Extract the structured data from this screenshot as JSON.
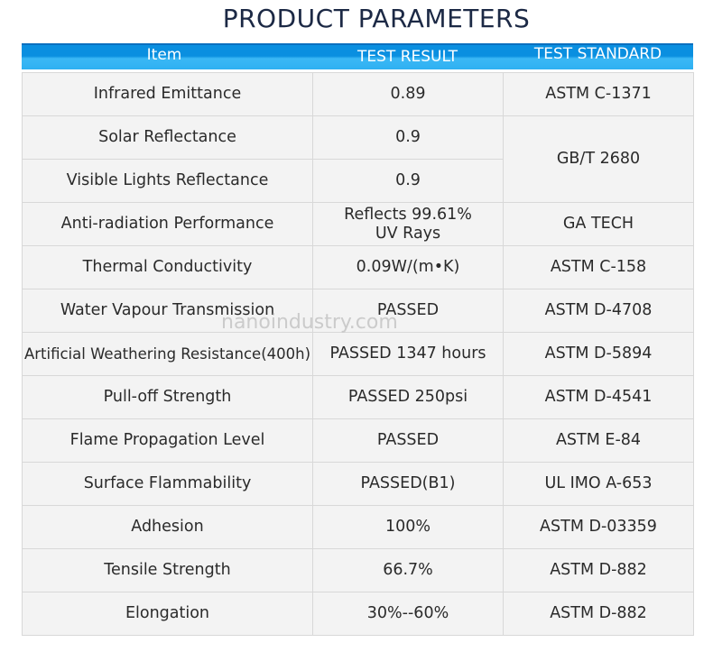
{
  "header": {
    "title": "PRODUCT PARAMETERS"
  },
  "table": {
    "columns": [
      "Item",
      "TEST RESULT",
      "TEST STANDARD"
    ],
    "rows": [
      {
        "item": "Infrared Emittance",
        "result": "0.89",
        "standard": "ASTM C-1371"
      },
      {
        "item": "Solar Reflectance",
        "result": "0.9",
        "standard": "GB/T 2680"
      },
      {
        "item": "Visible Lights Reflectance",
        "result": "0.9"
      },
      {
        "item": "Anti-radiation Performance",
        "result": "Reflects 99.61%\nUV Rays",
        "standard": "GA TECH"
      },
      {
        "item": "Thermal Conductivity",
        "result": "0.09W/(m•K)",
        "standard": "ASTM C-158"
      },
      {
        "item": "Water Vapour Transmission",
        "result": "PASSED",
        "standard": "ASTM D-4708"
      },
      {
        "item": "Artificial Weathering Resistance(400h)",
        "result": "PASSED 1347 hours",
        "standard": "ASTM D-5894"
      },
      {
        "item": "Pull-off Strength",
        "result": "PASSED 250psi",
        "standard": "ASTM D-4541"
      },
      {
        "item": "Flame Propagation Level",
        "result": "PASSED",
        "standard": "ASTM E-84"
      },
      {
        "item": "Surface Flammability",
        "result": "PASSED(B1)",
        "standard": "UL IMO A-653"
      },
      {
        "item": "Adhesion",
        "result": "100%",
        "standard": "ASTM D-03359"
      },
      {
        "item": "Tensile Strength",
        "result": "66.7%",
        "standard": "ASTM D-882"
      },
      {
        "item": "Elongation",
        "result": "30%--60%",
        "standard": "ASTM D-882"
      }
    ]
  },
  "watermark": "nanoindustry.com"
}
